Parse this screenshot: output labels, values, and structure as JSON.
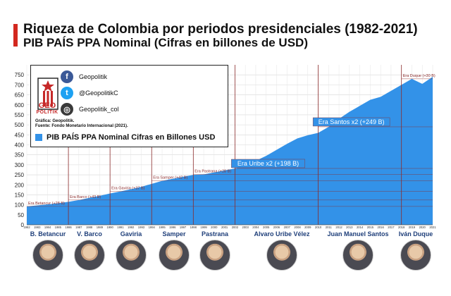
{
  "header": {
    "title": "Riqueza de Colombia por periodos presidenciales (1982-2021)",
    "subtitle": "PIB PAÍS PPA Nominal (Cifras en billones de USD)"
  },
  "legend": {
    "logo_text_1": "GEO",
    "logo_text_2": "POLITIK",
    "facebook": "Geopolitik",
    "twitter": "@GeopolitikC",
    "instagram": "Geopolitik_col",
    "credit_1": "Gráfica: Geopolitik.",
    "credit_2": "Fuente: Fondo Monetario Internacional (2021).",
    "series_label": "PIB PAÍS PPA Nominal Cifras en Billones USD"
  },
  "colors": {
    "accent": "#d3281f",
    "area": "#3392e8",
    "divider": "#8b2b2b",
    "names": "#1f3f7a"
  },
  "presidents": [
    {
      "name": "B. Betancur"
    },
    {
      "name": "V. Barco"
    },
    {
      "name": "Gaviria"
    },
    {
      "name": "Samper"
    },
    {
      "name": "Pastrana"
    },
    {
      "name": "Alvaro Uribe Vélez"
    },
    {
      "name": "Juan Manuel Santos"
    },
    {
      "name": "Iván Duque"
    }
  ],
  "chart_data": {
    "type": "area",
    "ylim": [
      0,
      800
    ],
    "yticks": [
      0,
      50,
      100,
      150,
      200,
      250,
      300,
      350,
      400,
      450,
      500,
      550,
      600,
      650,
      700,
      750
    ],
    "x": [
      1982,
      1983,
      1984,
      1985,
      1986,
      1987,
      1988,
      1989,
      1990,
      1991,
      1992,
      1993,
      1994,
      1995,
      1996,
      1997,
      1998,
      1999,
      2000,
      2001,
      2002,
      2003,
      2004,
      2005,
      2006,
      2007,
      2008,
      2009,
      2010,
      2011,
      2012,
      2013,
      2014,
      2015,
      2016,
      2017,
      2018,
      2019,
      2020,
      2021
    ],
    "values": [
      92,
      97,
      102,
      108,
      115,
      124,
      135,
      145,
      157,
      167,
      178,
      190,
      205,
      220,
      230,
      240,
      250,
      252,
      262,
      272,
      282,
      295,
      320,
      345,
      375,
      405,
      432,
      448,
      460,
      490,
      530,
      565,
      595,
      625,
      640,
      670,
      700,
      730,
      705,
      740
    ],
    "periods": [
      {
        "start": 1982,
        "end": 1986,
        "label": "Era Betancur (+28 B)",
        "value_level": 92
      },
      {
        "start": 1986,
        "end": 1990,
        "label": "Era Barco (+43 B)",
        "value_level": 124
      },
      {
        "start": 1990,
        "end": 1994,
        "label": "Era Gaviria (+37 B)",
        "value_level": 167
      },
      {
        "start": 1994,
        "end": 1998,
        "label": "Era Samper (+42 B)",
        "value_level": 220
      },
      {
        "start": 1998,
        "end": 2002,
        "label": "Era Pastrana (+28 B)",
        "value_level": 252
      },
      {
        "start": 2002,
        "end": 2010,
        "label": "Era Uribe x2 (+198 B)",
        "value_level": 282
      },
      {
        "start": 2010,
        "end": 2018,
        "label": "Era Santos x2 (+249 B)",
        "value_level": 490
      },
      {
        "start": 2018,
        "end": 2021,
        "label": "Era Duque (+30 B)",
        "value_level": 730
      }
    ]
  }
}
